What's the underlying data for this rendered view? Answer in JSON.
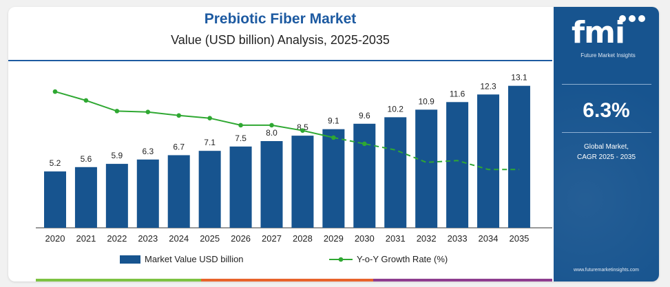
{
  "chart_data": {
    "type": "bar",
    "title": "Prebiotic Fiber Market",
    "subtitle": "Value (USD billion) Analysis, 2025-2035",
    "categories": [
      "2020",
      "2021",
      "2022",
      "2023",
      "2024",
      "2025",
      "2026",
      "2027",
      "2028",
      "2029",
      "2030",
      "2031",
      "2032",
      "2033",
      "2034",
      "2035"
    ],
    "series": [
      {
        "name": "Market Value USD billion",
        "type": "bar",
        "values": [
          5.2,
          5.6,
          5.9,
          6.3,
          6.7,
          7.1,
          7.5,
          8.0,
          8.5,
          9.1,
          9.6,
          10.2,
          10.9,
          11.6,
          12.3,
          13.1
        ],
        "labels": [
          "5.2",
          "5.6",
          "5.9",
          "6.3",
          "6.7",
          "7.1",
          "7.5",
          "8.0",
          "8.5",
          "9.1",
          "9.6",
          "10.2",
          "10.9",
          "11.6",
          "12.3",
          "13.1"
        ],
        "color": "#17548f"
      },
      {
        "name": "Y-o-Y Growth Rate (%)",
        "type": "line",
        "values": [
          7.7,
          7.2,
          6.6,
          6.55,
          6.35,
          6.2,
          5.8,
          5.8,
          5.5,
          5.1,
          4.75,
          4.4,
          3.7,
          3.8,
          3.3,
          3.3
        ],
        "color": "#2fa832"
      }
    ],
    "ylim": [
      0,
      14
    ],
    "y2lim": [
      0,
      10
    ],
    "grid": false,
    "legend": "bottom"
  },
  "side_panel": {
    "brand": "fmi",
    "brand_sub": "Future Market Insights",
    "cagr_value": "6.3%",
    "cagr_label_line1": "Global Market,",
    "cagr_label_line2": "CAGR 2025 - 2035",
    "url": "www.futuremarketinsights.com"
  },
  "colors": {
    "accent": "#1d5aa1",
    "panel": "#17548f",
    "bottom_bar": [
      "#7cc242",
      "#e8632b",
      "#8e3d8f"
    ]
  }
}
